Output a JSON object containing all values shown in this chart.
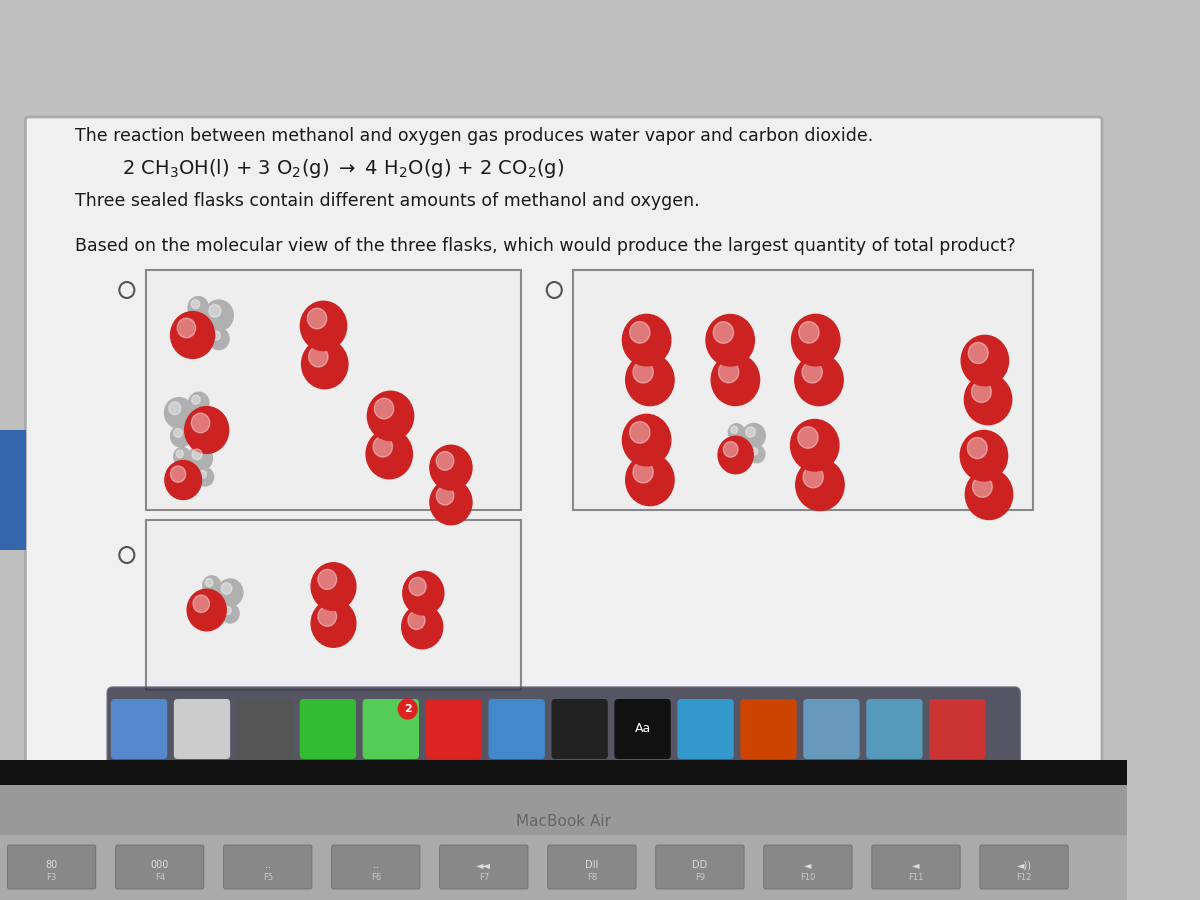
{
  "bg_outer": "#c0c0c0",
  "bg_screen": "#e8e8e8",
  "card_bg": "#f2f2f2",
  "flask_bg": "#eeeeee",
  "flask_border": "#888888",
  "red": "#cc2222",
  "gray": "#b0b0b0",
  "dark_gray": "#777777",
  "dock_bg": "#444455",
  "taskbar_bg": "#1a1a1a",
  "text_color": "#1a1a1a",
  "title1": "The reaction between methanol and oxygen gas produces water vapor and carbon dioxide.",
  "subtitle": "Three sealed flasks contain different amounts of methanol and oxygen.",
  "question": "Based on the molecular view of the three flasks, which would produce the largest quantity of total product?"
}
